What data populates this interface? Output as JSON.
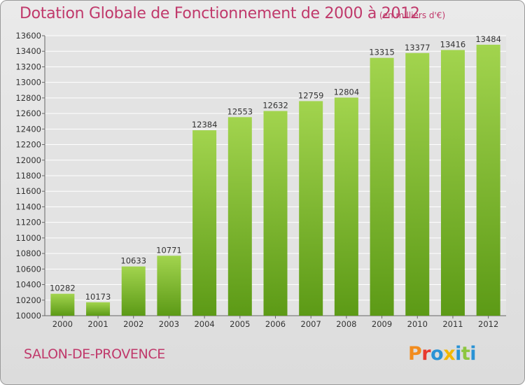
{
  "header": {
    "title": "Dotation Globale de Fonctionnement de 2000 à 2012",
    "unit": "(en milliers d'€)"
  },
  "footer": {
    "city": "SALON-DE-PROVENCE",
    "logo_text": "Proxiti",
    "logo_colors": [
      "#f28c1e",
      "#e8392f",
      "#2a93d5",
      "#f2b705",
      "#2a93d5",
      "#8dc63f",
      "#2a93d5"
    ]
  },
  "colors": {
    "title": "#c0396b",
    "bar_light": "#a2d44e",
    "bar_dark": "#5c9a16",
    "grid": "#ffffff",
    "text": "#333333"
  },
  "chart_data": {
    "type": "bar",
    "categories": [
      "2000",
      "2001",
      "2002",
      "2003",
      "2004",
      "2005",
      "2006",
      "2007",
      "2008",
      "2009",
      "2010",
      "2011",
      "2012"
    ],
    "values": [
      10282,
      10173,
      10633,
      10771,
      12384,
      12553,
      12632,
      12759,
      12804,
      13315,
      13377,
      13416,
      13484
    ],
    "ylim": [
      10000,
      13600
    ],
    "yticks": [
      10000,
      10200,
      10400,
      10600,
      10800,
      11000,
      11200,
      11400,
      11600,
      11800,
      12000,
      12200,
      12400,
      12600,
      12800,
      13000,
      13200,
      13400,
      13600
    ],
    "grid": true,
    "data_labels": true
  }
}
